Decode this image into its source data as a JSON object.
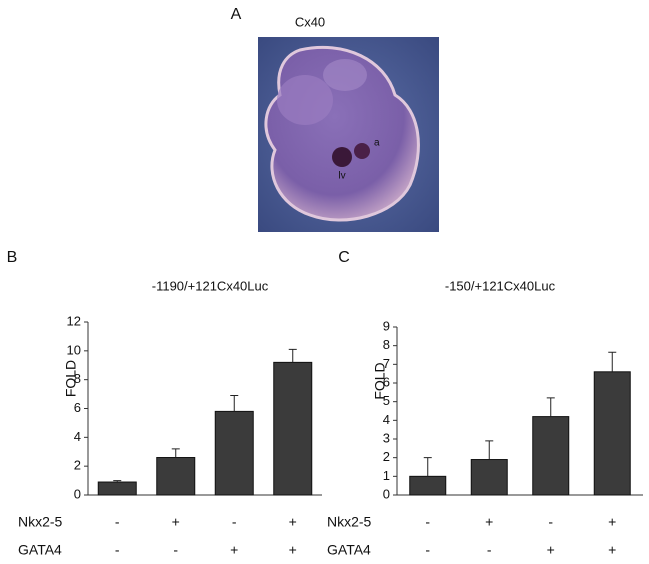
{
  "figure_a": {
    "label": "A",
    "title": "Cx40",
    "annotations": [
      "a",
      "lv"
    ]
  },
  "chart_data": [
    {
      "type": "bar",
      "panel": "B",
      "title": "-1190/+121Cx40Luc",
      "y_label": "FOLD",
      "categories": [
        null,
        null,
        null,
        null
      ],
      "values": [
        0.9,
        2.6,
        5.8,
        9.2
      ],
      "errors": [
        0.1,
        0.6,
        1.1,
        0.9
      ],
      "color": "#3b3b3b",
      "ylim": [
        0,
        12
      ],
      "yticks": [
        0,
        2,
        4,
        6,
        8,
        10,
        12
      ],
      "conditions": [
        {
          "name": "Nkx2-5",
          "labels": [
            "-",
            "+",
            "-",
            "+"
          ]
        },
        {
          "name": "GATA4",
          "labels": [
            "-",
            "-",
            "+",
            "+"
          ]
        }
      ]
    },
    {
      "type": "bar",
      "panel": "C",
      "title": "-150/+121Cx40Luc",
      "y_label": "FOLD",
      "categories": [
        null,
        null,
        null,
        null
      ],
      "values": [
        1.0,
        1.9,
        4.2,
        6.6
      ],
      "errors": [
        1.0,
        1.0,
        1.0,
        1.05
      ],
      "color": "#3b3b3b",
      "ylim": [
        0,
        9
      ],
      "yticks": [
        0,
        1,
        2,
        3,
        4,
        5,
        6,
        7,
        8,
        9
      ],
      "conditions": [
        {
          "name": "Nkx2-5",
          "labels": [
            "-",
            "+",
            "-",
            "+"
          ]
        },
        {
          "name": "GATA4",
          "labels": [
            "-",
            "-",
            "+",
            "+"
          ]
        }
      ]
    }
  ]
}
